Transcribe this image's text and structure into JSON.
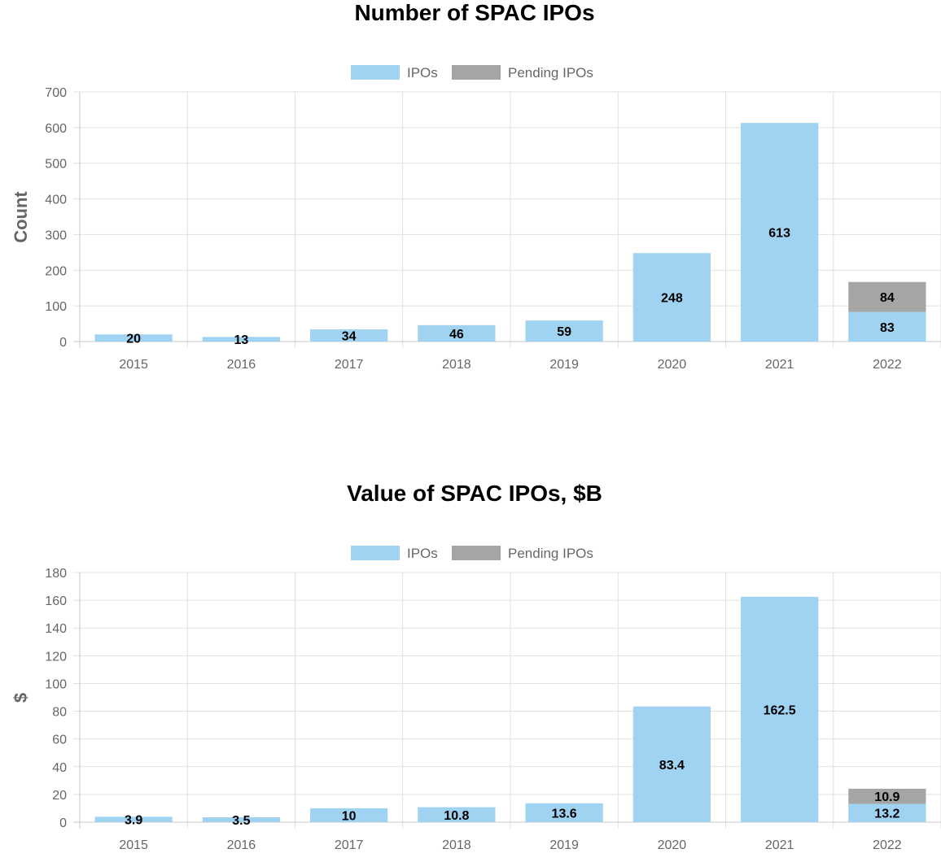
{
  "colors": {
    "ipos": "#9fd3f1",
    "pending": "#a5a5a5"
  },
  "chart_data": [
    {
      "type": "bar",
      "stacked": true,
      "title": "Number of SPAC IPOs",
      "xlabel": "",
      "ylabel": "Count",
      "ylim": [
        0,
        700
      ],
      "yticks": [
        0,
        100,
        200,
        300,
        400,
        500,
        600,
        700
      ],
      "grid": true,
      "legend_position": "top-center",
      "categories": [
        "2015",
        "2016",
        "2017",
        "2018",
        "2019",
        "2020",
        "2021",
        "2022"
      ],
      "series": [
        {
          "name": "IPOs",
          "values": [
            20,
            13,
            34,
            46,
            59,
            248,
            613,
            83
          ],
          "labels": [
            "20",
            "13",
            "34",
            "46",
            "59",
            "248",
            "613",
            "83"
          ]
        },
        {
          "name": "Pending IPOs",
          "values": [
            null,
            null,
            null,
            null,
            null,
            null,
            null,
            84
          ],
          "labels": [
            null,
            null,
            null,
            null,
            null,
            null,
            null,
            "84"
          ]
        }
      ]
    },
    {
      "type": "bar",
      "stacked": true,
      "title": "Value of SPAC IPOs, $B",
      "xlabel": "",
      "ylabel": "$",
      "ylim": [
        0,
        180
      ],
      "yticks": [
        0,
        20,
        40,
        60,
        80,
        100,
        120,
        140,
        160,
        180
      ],
      "grid": true,
      "legend_position": "top-center",
      "categories": [
        "2015",
        "2016",
        "2017",
        "2018",
        "2019",
        "2020",
        "2021",
        "2022"
      ],
      "series": [
        {
          "name": "IPOs",
          "values": [
            3.9,
            3.5,
            10,
            10.8,
            13.6,
            83.4,
            162.5,
            13.2
          ],
          "labels": [
            "3.9",
            "3.5",
            "10",
            "10.8",
            "13.6",
            "83.4",
            "162.5",
            "13.2"
          ]
        },
        {
          "name": "Pending IPOs",
          "values": [
            null,
            null,
            null,
            null,
            null,
            null,
            null,
            10.9
          ],
          "labels": [
            null,
            null,
            null,
            null,
            null,
            null,
            null,
            "10.9"
          ]
        }
      ]
    }
  ]
}
